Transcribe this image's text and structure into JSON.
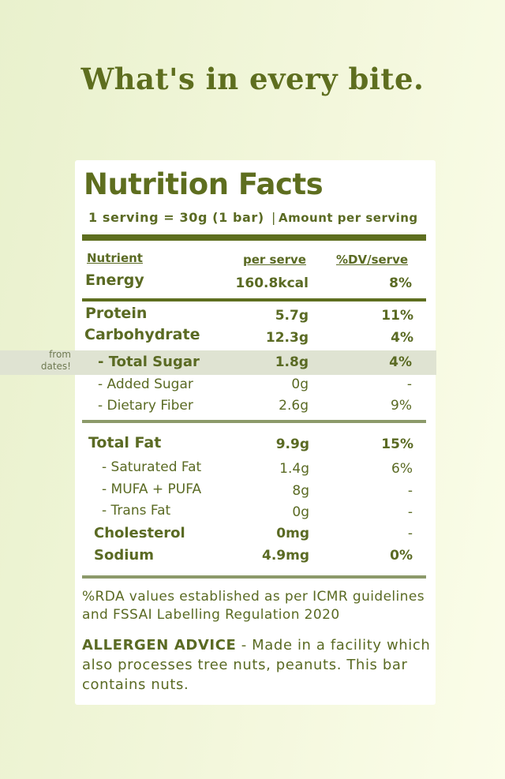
{
  "headline": "What's in every bite.",
  "panel": {
    "title": "Nutrition Facts",
    "serving_size": "1 serving = 30g (1 bar)",
    "separator": "|",
    "amount_label": "Amount per serving",
    "columns": {
      "nutrient": "Nutrient",
      "per_serve": "per serve",
      "dv": "%DV/serve"
    },
    "rows": [
      {
        "name": "Energy",
        "value": "160.8kcal",
        "dv": "8%"
      },
      {
        "name": "Protein",
        "value": "5.7g",
        "dv": "11%"
      },
      {
        "name": "Carbohydrate",
        "value": "12.3g",
        "dv": "4%"
      },
      {
        "name": "- Total Sugar",
        "value": "1.8g",
        "dv": "4%"
      },
      {
        "name": "- Added Sugar",
        "value": "0g",
        "dv": "-"
      },
      {
        "name": "- Dietary Fiber",
        "value": "2.6g",
        "dv": "9%"
      },
      {
        "name": "Total Fat",
        "value": "9.9g",
        "dv": "15%"
      },
      {
        "name": "- Saturated Fat",
        "value": "1.4g",
        "dv": "6%"
      },
      {
        "name": "- MUFA + PUFA",
        "value": "8g",
        "dv": "-"
      },
      {
        "name": "- Trans Fat",
        "value": "0g",
        "dv": "-"
      },
      {
        "name": "Cholesterol",
        "value": "0mg",
        "dv": "-"
      },
      {
        "name": "Sodium",
        "value": "4.9mg",
        "dv": "0%"
      }
    ],
    "side_note": "from dates!",
    "rda_note": "%RDA values established as per ICMR guidelines and FSSAI Labelling Regulation 2020",
    "allergen_label": "ALLERGEN ADVICE",
    "allergen_text": " - Made in a facility which also processes tree nuts, peanuts. This bar contains nuts."
  },
  "colors": {
    "background_start": "#e9f1cd",
    "background_end": "#fbfde9",
    "brand_olive": "#5e6e1f",
    "highlight_band": "#dfe3d2"
  }
}
